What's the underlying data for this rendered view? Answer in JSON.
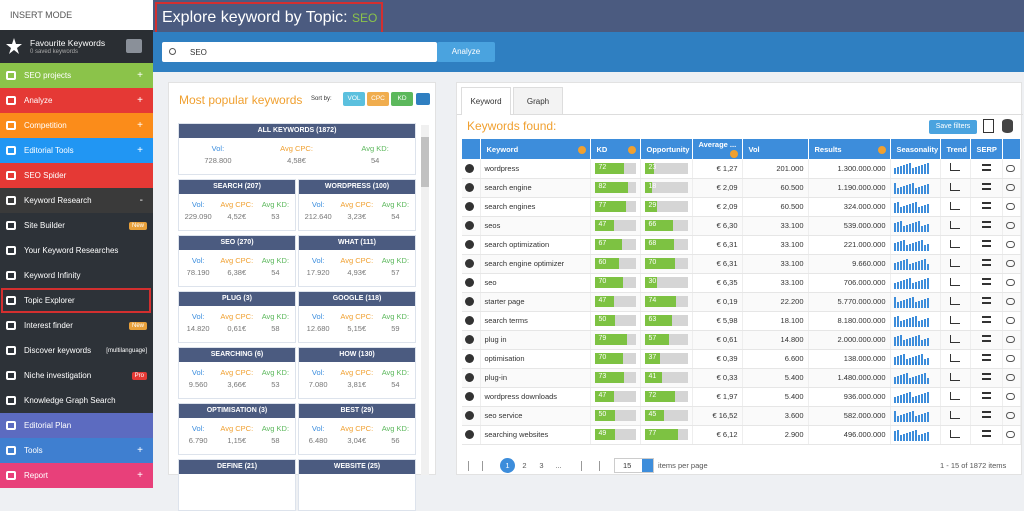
{
  "sidebar": {
    "mode": "INSERT MODE",
    "favourites": {
      "title": "Favourite Keywords",
      "subtitle": "0 saved keywords"
    },
    "menu": [
      {
        "label": "SEO projects",
        "toggle": "+"
      },
      {
        "label": "Analyze",
        "toggle": "+"
      },
      {
        "label": "Competition",
        "toggle": "+"
      },
      {
        "label": "Editorial Tools",
        "toggle": "+"
      },
      {
        "label": "SEO Spider"
      },
      {
        "label": "Keyword Research",
        "toggle": "-"
      },
      {
        "label": "Site Builder",
        "badge": "New"
      },
      {
        "label": "Your Keyword Researches"
      },
      {
        "label": "Keyword Infinity"
      },
      {
        "label": "Topic Explorer"
      },
      {
        "label": "Interest finder",
        "badge": "New"
      },
      {
        "label": "Discover keywords",
        "note": "[multilanguage]"
      },
      {
        "label": "Niche investigation",
        "badge": "Pro"
      },
      {
        "label": "Knowledge Graph Search"
      },
      {
        "label": "Editorial Plan"
      },
      {
        "label": "Tools",
        "toggle": "+"
      },
      {
        "label": "Report",
        "toggle": "+"
      }
    ]
  },
  "header": {
    "title": "Explore keyword by Topic:",
    "topic": "SEO"
  },
  "search": {
    "query": "SEO",
    "button": "Analyze"
  },
  "popular": {
    "title": "Most popular keywords",
    "sort_label": "Sort by:",
    "sort_options": [
      "VOL",
      "CPC",
      "KD"
    ],
    "labels": {
      "vol": "Vol:",
      "cpc": "Avg CPC:",
      "kd": "Avg KD:"
    },
    "all": {
      "name": "ALL KEYWORDS (1872)",
      "vol": "728.800",
      "cpc": "4,58€",
      "kd": 54
    },
    "topics": [
      {
        "name": "SEARCH (207)",
        "vol": "229.090",
        "cpc": "4,52€",
        "kd": 53
      },
      {
        "name": "WORDPRESS (100)",
        "vol": "212.640",
        "cpc": "3,23€",
        "kd": 54
      },
      {
        "name": "SEO (270)",
        "vol": "78.190",
        "cpc": "6,38€",
        "kd": 54
      },
      {
        "name": "WHAT (111)",
        "vol": "17.920",
        "cpc": "4,93€",
        "kd": 57
      },
      {
        "name": "PLUG (3)",
        "vol": "14.820",
        "cpc": "0,61€",
        "kd": 58
      },
      {
        "name": "GOOGLE (118)",
        "vol": "12.680",
        "cpc": "5,15€",
        "kd": 59
      },
      {
        "name": "SEARCHING (6)",
        "vol": "9.560",
        "cpc": "3,66€",
        "kd": 53
      },
      {
        "name": "HOW (130)",
        "vol": "7.080",
        "cpc": "3,81€",
        "kd": 54
      },
      {
        "name": "OPTIMISATION (3)",
        "vol": "6.790",
        "cpc": "1,15€",
        "kd": 58
      },
      {
        "name": "BEST (29)",
        "vol": "6.480",
        "cpc": "3,04€",
        "kd": 56
      },
      {
        "name": "DEFINE (21)"
      },
      {
        "name": "WEBSITE (25)"
      }
    ]
  },
  "results": {
    "tabs": [
      "Keyword",
      "Graph"
    ],
    "title": "Keywords found:",
    "save_filters": "Save filters",
    "columns": {
      "keyword": "Keyword",
      "kd": "KD",
      "opportunity": "Opportunity",
      "cpc": "Average ...",
      "vol": "Vol",
      "results": "Results",
      "seasonality": "Seasonality",
      "trend": "Trend",
      "serp": "SERP"
    },
    "rows": [
      {
        "keyword": "wordpress",
        "kd": 72,
        "opportunity": 23,
        "cpc": "€ 1,27",
        "vol": "201.000",
        "results": "1.300.000.000"
      },
      {
        "keyword": "search engine",
        "kd": 82,
        "opportunity": 18,
        "cpc": "€ 2,09",
        "vol": "60.500",
        "results": "1.190.000.000"
      },
      {
        "keyword": "search engines",
        "kd": 77,
        "opportunity": 29,
        "cpc": "€ 2,09",
        "vol": "60.500",
        "results": "324.000.000"
      },
      {
        "keyword": "seos",
        "kd": 47,
        "opportunity": 66,
        "cpc": "€ 6,30",
        "vol": "33.100",
        "results": "539.000.000"
      },
      {
        "keyword": "search optimization",
        "kd": 67,
        "opportunity": 68,
        "cpc": "€ 6,31",
        "vol": "33.100",
        "results": "221.000.000"
      },
      {
        "keyword": "search engine optimizer",
        "kd": 60,
        "opportunity": 70,
        "cpc": "€ 6,31",
        "vol": "33.100",
        "results": "9.660.000"
      },
      {
        "keyword": "seo",
        "kd": 70,
        "opportunity": 30,
        "cpc": "€ 6,35",
        "vol": "33.100",
        "results": "706.000.000"
      },
      {
        "keyword": "starter page",
        "kd": 47,
        "opportunity": 74,
        "cpc": "€ 0,19",
        "vol": "22.200",
        "results": "5.770.000.000"
      },
      {
        "keyword": "search terms",
        "kd": 50,
        "opportunity": 63,
        "cpc": "€ 5,98",
        "vol": "18.100",
        "results": "8.180.000.000"
      },
      {
        "keyword": "plug in",
        "kd": 79,
        "opportunity": 57,
        "cpc": "€ 0,61",
        "vol": "14.800",
        "results": "2.000.000.000"
      },
      {
        "keyword": "optimisation",
        "kd": 70,
        "opportunity": 37,
        "cpc": "€ 0,39",
        "vol": "6.600",
        "results": "138.000.000"
      },
      {
        "keyword": "plug-in",
        "kd": 73,
        "opportunity": 41,
        "cpc": "€ 0,33",
        "vol": "5.400",
        "results": "1.480.000.000"
      },
      {
        "keyword": "wordpress downloads",
        "kd": 47,
        "opportunity": 72,
        "cpc": "€ 1,97",
        "vol": "5.400",
        "results": "936.000.000"
      },
      {
        "keyword": "seo service",
        "kd": 50,
        "opportunity": 45,
        "cpc": "€ 16,52",
        "vol": "3.600",
        "results": "582.000.000"
      },
      {
        "keyword": "searching websites",
        "kd": 49,
        "opportunity": 77,
        "cpc": "€ 6,12",
        "vol": "2.900",
        "results": "496.000.000"
      }
    ],
    "pagination": {
      "pages": [
        1,
        2,
        3,
        "..."
      ],
      "per_page": 15,
      "per_page_label": "items per page",
      "summary": "1 - 15 of 1872 items"
    }
  }
}
